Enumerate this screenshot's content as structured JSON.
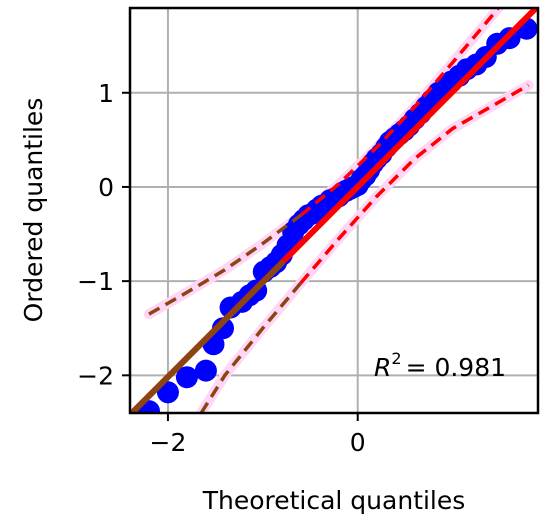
{
  "chart_data": {
    "type": "scatter",
    "title": "",
    "xlabel": "Theoretical quantiles",
    "ylabel": "Ordered quantiles",
    "xlim": [
      -2.4,
      1.9
    ],
    "ylim": [
      -2.4,
      1.9
    ],
    "grid": true,
    "xticks": [
      -2,
      0
    ],
    "yticks": [
      -2,
      -1,
      0,
      1
    ],
    "annotation": {
      "r2_symbol": "R",
      "r2_exponent": "2",
      "r2_value": "= 0.981"
    },
    "colors": {
      "points": "#0000ff",
      "fit_line": "#ff0000",
      "fit_line_alt": "#8b4513",
      "band": "#ff0000",
      "band_alt": "#8b4513",
      "band_halo": "#ffd6f5"
    },
    "points": {
      "x": [
        -2.2,
        -2.0,
        -1.8,
        -1.6,
        -1.52,
        -1.42,
        -1.34,
        -1.22,
        -1.14,
        -1.07,
        -0.99,
        -0.92,
        -0.86,
        -0.8,
        -0.74,
        -0.68,
        -0.62,
        -0.57,
        -0.52,
        -0.47,
        -0.43,
        -0.38,
        -0.33,
        -0.29,
        -0.24,
        -0.2,
        -0.16,
        -0.12,
        -0.08,
        -0.04,
        0.0,
        0.04,
        0.08,
        0.12,
        0.16,
        0.2,
        0.25,
        0.3,
        0.34,
        0.39,
        0.44,
        0.49,
        0.54,
        0.6,
        0.66,
        0.72,
        0.78,
        0.85,
        0.92,
        0.99,
        1.07,
        1.15,
        1.25,
        1.35,
        1.47,
        1.6,
        1.78
      ],
      "y": [
        -2.38,
        -2.18,
        -2.02,
        -1.95,
        -1.67,
        -1.5,
        -1.28,
        -1.22,
        -1.15,
        -1.1,
        -0.9,
        -0.85,
        -0.8,
        -0.72,
        -0.62,
        -0.48,
        -0.4,
        -0.35,
        -0.3,
        -0.28,
        -0.24,
        -0.2,
        -0.18,
        -0.14,
        -0.12,
        -0.1,
        -0.06,
        -0.04,
        -0.02,
        0.0,
        0.02,
        0.08,
        0.12,
        0.18,
        0.25,
        0.3,
        0.35,
        0.42,
        0.48,
        0.52,
        0.56,
        0.6,
        0.65,
        0.72,
        0.78,
        0.85,
        0.92,
        1.0,
        1.06,
        1.12,
        1.18,
        1.25,
        1.3,
        1.38,
        1.52,
        1.58,
        1.68
      ]
    },
    "fit_line": {
      "x": [
        -2.4,
        1.9
      ],
      "y": [
        -2.42,
        1.92
      ]
    },
    "fit_line_alt": {
      "x": [
        -2.4,
        -0.8
      ],
      "y": [
        -2.42,
        -0.81
      ]
    },
    "bands": {
      "upper": {
        "x": [
          -2.2,
          -1.8,
          -1.4,
          -1.0,
          -0.6,
          -0.2,
          0.2,
          0.6,
          1.0,
          1.4,
          1.8
        ],
        "y": [
          -1.35,
          -1.12,
          -0.88,
          -0.6,
          -0.3,
          0.03,
          0.42,
          0.85,
          1.32,
          1.8,
          2.3
        ]
      },
      "lower": {
        "x": [
          -1.65,
          -1.4,
          -1.0,
          -0.6,
          -0.2,
          0.2,
          0.6,
          1.0,
          1.4,
          1.8
        ],
        "y": [
          -2.4,
          -2.0,
          -1.5,
          -1.02,
          -0.55,
          -0.1,
          0.3,
          0.62,
          0.85,
          1.08
        ]
      }
    }
  }
}
